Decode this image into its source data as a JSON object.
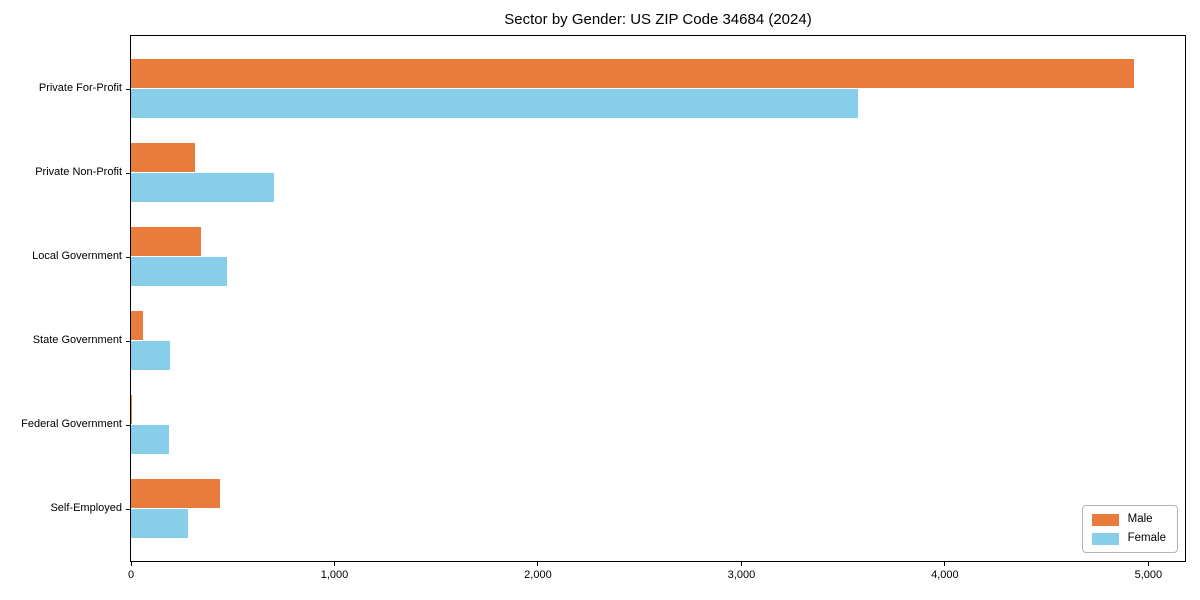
{
  "chart_data": {
    "type": "bar",
    "orientation": "horizontal",
    "title": "Sector by Gender: US ZIP Code 34684 (2024)",
    "categories": [
      "Private For-Profit",
      "Private Non-Profit",
      "Local Government",
      "State Government",
      "Federal Government",
      "Self-Employed"
    ],
    "series": [
      {
        "name": "Male",
        "color": "#e97c3c",
        "values": [
          4930,
          314,
          344,
          57,
          7,
          438
        ]
      },
      {
        "name": "Female",
        "color": "#87ceeb",
        "values": [
          3573,
          703,
          470,
          193,
          188,
          278
        ]
      }
    ],
    "xlabel": "",
    "ylabel": "",
    "xlim": [
      0,
      5180
    ],
    "x_ticks": [
      0,
      1000,
      2000,
      3000,
      4000,
      5000
    ],
    "x_tick_labels": [
      "0",
      "1,000",
      "2,000",
      "3,000",
      "4,000",
      "5,000"
    ],
    "grid": false,
    "legend": {
      "position": "lower right",
      "entries": [
        "Male",
        "Female"
      ]
    },
    "colors": {
      "spine": "#000000",
      "legend_border": "#b4b4b4",
      "background": "#ffffff"
    }
  }
}
